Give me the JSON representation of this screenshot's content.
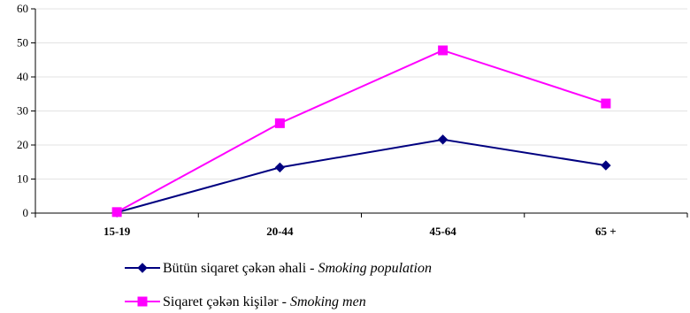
{
  "chart_data": {
    "type": "line",
    "categories": [
      "15-19",
      "20-44",
      "45-64",
      "65 +"
    ],
    "ylim": [
      0,
      60
    ],
    "yticks": [
      0,
      10,
      20,
      30,
      40,
      50,
      60
    ],
    "grid": true,
    "legend_position": "bottom",
    "series": [
      {
        "name_az": "Bütün siqaret çəkən əhali",
        "name_en": "Smoking population",
        "values": [
          0.2,
          13.4,
          21.6,
          14.0
        ],
        "color": "#000080",
        "marker": "diamond"
      },
      {
        "name_az": "Siqaret çəkən kişilər",
        "name_en": "Smoking men",
        "values": [
          0.3,
          26.4,
          47.8,
          32.2
        ],
        "color": "#FF00FF",
        "marker": "square"
      }
    ]
  }
}
